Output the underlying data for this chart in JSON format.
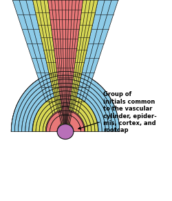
{
  "annotation_text": "Group of\ninitials common\nto the vascular\ncylinder, epider-\nmis, cortex, and\nrootcap",
  "colors": {
    "blue_outer": "#8DCBE8",
    "yellow_cortex": "#D8D855",
    "pink_vascular": "#E87878",
    "purple_initial": "#B870B8",
    "background": "#FFFFFF",
    "outline": "#111111"
  },
  "figsize": [
    2.5,
    2.91
  ],
  "dpi": 100
}
